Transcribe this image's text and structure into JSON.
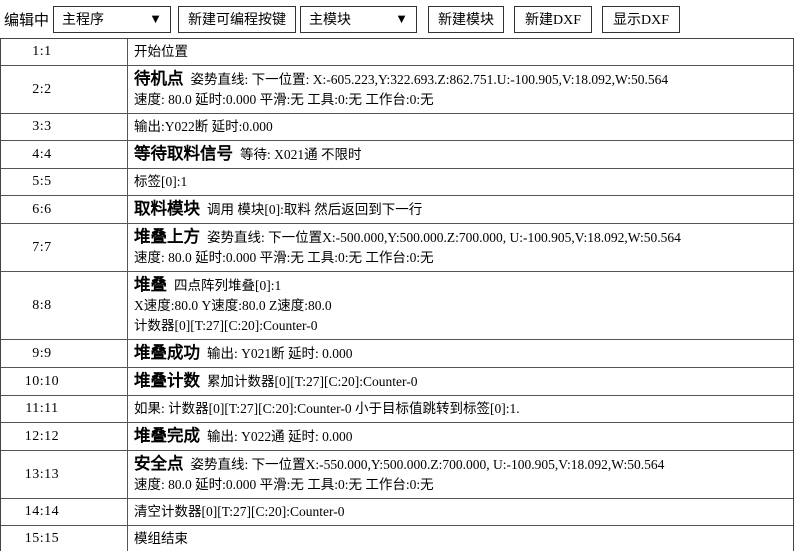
{
  "toolbar": {
    "status_label": "编辑中",
    "program_select": {
      "value": "主程序",
      "arrow": "▼"
    },
    "new_programmable_key_button": "新建可编程按键",
    "module_select": {
      "value": "主模块",
      "arrow": "▼"
    },
    "new_module_button": "新建模块",
    "new_dxf_button": "新建DXF",
    "show_dxf_button": "显示DXF"
  },
  "colors": {
    "background": "#ffffff",
    "text": "#000000",
    "grid_border": "#555555",
    "control_border": "#333333"
  },
  "program_table": {
    "rows": [
      {
        "num": "1:1",
        "title": "",
        "text": "开始位置",
        "extra_lines": []
      },
      {
        "num": "2:2",
        "title": "待机点",
        "text": "姿势直线: 下一位置: X:-605.223,Y:322.693.Z:862.751.U:-100.905,V:18.092,W:50.564",
        "extra_lines": [
          "速度: 80.0 延时:0.000 平滑:无 工具:0:无 工作台:0:无"
        ]
      },
      {
        "num": "3:3",
        "title": "",
        "text": "输出:Y022断 延时:0.000",
        "extra_lines": []
      },
      {
        "num": "4:4",
        "title": "等待取料信号",
        "text": "等待: X021通 不限时",
        "extra_lines": []
      },
      {
        "num": "5:5",
        "title": "",
        "text": "标签[0]:1",
        "extra_lines": []
      },
      {
        "num": "6:6",
        "title": "取料模块",
        "text": "调用 模块[0]:取料 然后返回到下一行",
        "extra_lines": []
      },
      {
        "num": "7:7",
        "title": "堆叠上方",
        "text": "姿势直线: 下一位置X:-500.000,Y:500.000.Z:700.000, U:-100.905,V:18.092,W:50.564",
        "extra_lines": [
          "速度: 80.0 延时:0.000 平滑:无 工具:0:无 工作台:0:无"
        ]
      },
      {
        "num": "8:8",
        "title": "堆叠",
        "text": "四点阵列堆叠[0]:1",
        "extra_lines": [
          "X速度:80.0 Y速度:80.0 Z速度:80.0",
          "计数器[0][T:27][C:20]:Counter-0"
        ]
      },
      {
        "num": "9:9",
        "title": "堆叠成功",
        "text": "输出: Y021断 延时: 0.000",
        "extra_lines": []
      },
      {
        "num": "10:10",
        "title": "堆叠计数",
        "text": "累加计数器[0][T:27][C:20]:Counter-0",
        "extra_lines": []
      },
      {
        "num": "11:11",
        "title": "",
        "text": "如果: 计数器[0][T:27][C:20]:Counter-0 小于目标值跳转到标签[0]:1.",
        "extra_lines": []
      },
      {
        "num": "12:12",
        "title": "堆叠完成",
        "text": "输出: Y022通 延时: 0.000",
        "extra_lines": []
      },
      {
        "num": "13:13",
        "title": "安全点",
        "text": "姿势直线: 下一位置X:-550.000,Y:500.000.Z:700.000, U:-100.905,V:18.092,W:50.564",
        "extra_lines": [
          "速度: 80.0 延时:0.000 平滑:无 工具:0:无 工作台:0:无"
        ]
      },
      {
        "num": "14:14",
        "title": "",
        "text": "清空计数器[0][T:27][C:20]:Counter-0",
        "extra_lines": []
      },
      {
        "num": "15:15",
        "title": "",
        "text": "模组结束",
        "extra_lines": []
      }
    ]
  }
}
